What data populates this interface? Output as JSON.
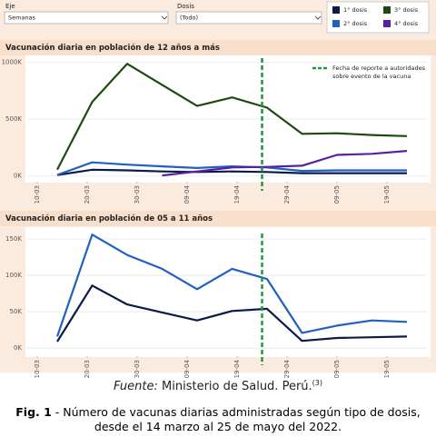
{
  "filters": [
    {
      "label": "Eje",
      "value": "Semanas"
    },
    {
      "label": "Dosis",
      "value": "(Todo)"
    }
  ],
  "chart_data": [
    {
      "type": "line",
      "title": "Vacunación diaria en población de 12 años a más",
      "x": [
        "14-03",
        "21-03",
        "28-03",
        "04-04",
        "11-04",
        "18-04",
        "25-04",
        "02-05",
        "09-05",
        "16-05",
        "23-05"
      ],
      "xlim": [
        "08-03",
        "27-05"
      ],
      "xticks": [
        "10-03",
        "20-03",
        "30-03",
        "09-04",
        "19-04",
        "29-04",
        "09-05",
        "19-05"
      ],
      "ylim": [
        -50,
        1050
      ],
      "yticks": [
        {
          "value": 0,
          "label": "0K"
        },
        {
          "value": 500,
          "label": "500K"
        },
        {
          "value": 1000,
          "label": "1000K"
        }
      ],
      "grid": true,
      "vline": {
        "x": "24-04",
        "color": "#1a9a3a",
        "label_lines": [
          "Fecha de reporte a autoridades",
          "sobre evento de la vacuna"
        ]
      },
      "series": [
        {
          "name": "1° dosis",
          "color": "#0b1a4a",
          "values": [
            8,
            55,
            50,
            40,
            35,
            40,
            35,
            25,
            25,
            25,
            25
          ]
        },
        {
          "name": "2° dosis",
          "color": "#2060c0",
          "values": [
            10,
            120,
            100,
            85,
            70,
            85,
            75,
            45,
            50,
            50,
            50
          ]
        },
        {
          "name": "3° dosis",
          "color": "#1e4a12",
          "values": [
            55,
            650,
            985,
            800,
            615,
            690,
            600,
            370,
            375,
            360,
            350
          ]
        },
        {
          "name": "4° dosis",
          "color": "#5a1fa0",
          "values": [
            null,
            null,
            null,
            5,
            40,
            75,
            80,
            90,
            185,
            195,
            220
          ]
        }
      ]
    },
    {
      "type": "line",
      "title": "Vacunación diaria en población de 05 a 11 años",
      "x": [
        "14-03",
        "21-03",
        "28-03",
        "04-04",
        "11-04",
        "18-04",
        "25-04",
        "02-05",
        "09-05",
        "16-05",
        "23-05"
      ],
      "xlim": [
        "08-03",
        "27-05"
      ],
      "xticks": [
        "10-03",
        "20-03",
        "30-03",
        "09-04",
        "19-04",
        "29-04",
        "09-05",
        "19-05"
      ],
      "ylim": [
        -11,
        160
      ],
      "yticks": [
        {
          "value": 0,
          "label": "0K"
        },
        {
          "value": 50,
          "label": "50K"
        },
        {
          "value": 100,
          "label": "100K"
        },
        {
          "value": 150,
          "label": "150K"
        }
      ],
      "grid": true,
      "vline": {
        "x": "24-04",
        "color": "#1a9a3a"
      },
      "series": [
        {
          "color": "#0b1a4a",
          "values": [
            9,
            86,
            60,
            49,
            38,
            51,
            54,
            10,
            14,
            15,
            16
          ]
        },
        {
          "color": "#2060c0",
          "values": [
            16,
            156,
            128,
            109,
            81,
            109,
            95,
            21,
            31,
            38,
            36
          ]
        }
      ]
    }
  ],
  "source": {
    "label": "Fuente:",
    "text": "Ministerio de Salud. Perú.",
    "ref": "(3)"
  },
  "caption": {
    "label": "Fig. 1",
    "text": " - Número de vacunas diarias administradas según tipo de dosis, desde el 14 marzo al 25 de mayo del 2022."
  }
}
